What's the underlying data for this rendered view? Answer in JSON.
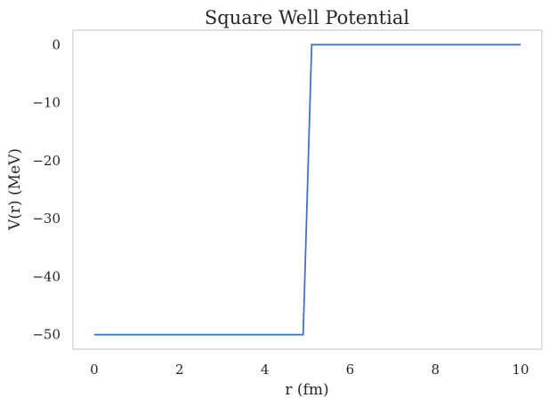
{
  "chart_data": {
    "type": "line",
    "title": "Square Well Potential",
    "xlabel": "r (fm)",
    "ylabel": "V(r) (MeV)",
    "xlim": [
      -0.5,
      10.5
    ],
    "ylim": [
      -52.5,
      2.5
    ],
    "xticks": [
      0,
      2,
      4,
      6,
      8,
      10
    ],
    "yticks": [
      0,
      -10,
      -20,
      -30,
      -40,
      -50
    ],
    "grid": false,
    "series": [
      {
        "color": "#4472c4",
        "x": [
          0,
          4.9,
          5.1,
          10
        ],
        "y": [
          -50,
          -50,
          0,
          0
        ]
      }
    ]
  }
}
